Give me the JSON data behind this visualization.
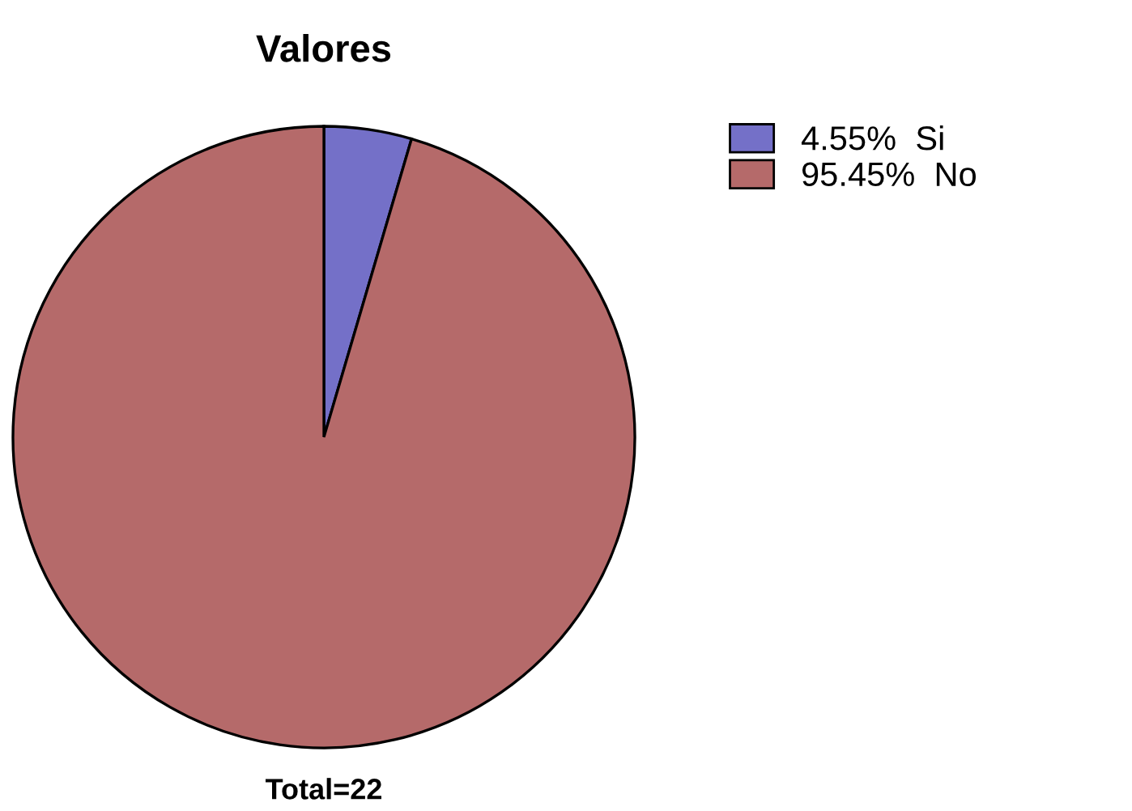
{
  "chart_data": {
    "type": "pie",
    "title": "Valores",
    "categories": [
      "Si",
      "No"
    ],
    "values": [
      4.55,
      95.45
    ],
    "value_labels": [
      "4.55%",
      "95.45%"
    ],
    "colors": [
      "#7470c8",
      "#b56a6a"
    ],
    "legend": "top right",
    "annotations": [
      "Total=22"
    ]
  }
}
